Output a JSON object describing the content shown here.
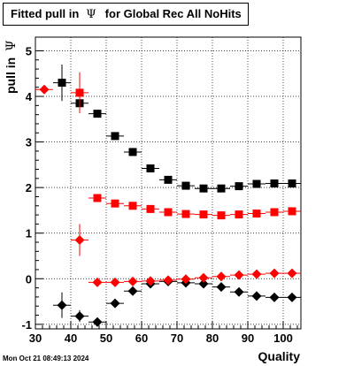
{
  "title": {
    "text": "Fitted pull in",
    "symbol": "Ψ",
    "suffix": "for Global Rec All NoHits"
  },
  "axes": {
    "ylabel": "pull in",
    "ylabel_symbol": "Ψ",
    "xlabel": "Quality"
  },
  "timestamp": "Mon Oct 21 08:49:13 2024",
  "colors": {
    "black": "#000000",
    "red": "#ff0000"
  },
  "chart_data": {
    "type": "scatter",
    "xlim": [
      30,
      105
    ],
    "ylim": [
      -1.1,
      5.3
    ],
    "xticks": [
      30,
      40,
      50,
      60,
      70,
      80,
      90,
      100
    ],
    "yticks": [
      -1,
      0,
      1,
      2,
      3,
      4,
      5
    ],
    "grid": true,
    "x_halfwidth": 2.5,
    "series": [
      {
        "marker": "square",
        "color": "#000000",
        "x": [
          37.5,
          42.5,
          47.5,
          52.5,
          57.5,
          62.5,
          67.5,
          72.5,
          77.5,
          82.5,
          87.5,
          92.5,
          97.5,
          102.5
        ],
        "y": [
          4.3,
          3.85,
          3.62,
          3.13,
          2.78,
          2.42,
          2.17,
          2.04,
          1.98,
          1.98,
          2.03,
          2.08,
          2.09,
          2.09
        ],
        "yerr": [
          0.4,
          0.1,
          0.06,
          0.05,
          0.04,
          0.03,
          0.03,
          0.03,
          0.02,
          0.02,
          0.02,
          0.02,
          0.02,
          0.02
        ]
      },
      {
        "marker": "square",
        "color": "#ff0000",
        "x": [
          42.5,
          47.5,
          52.5,
          57.5,
          62.5,
          67.5,
          72.5,
          77.5,
          82.5,
          87.5,
          92.5,
          97.5,
          102.5
        ],
        "y": [
          4.08,
          1.77,
          1.65,
          1.6,
          1.53,
          1.46,
          1.42,
          1.41,
          1.39,
          1.41,
          1.43,
          1.46,
          1.48
        ],
        "yerr": [
          0.45,
          0.06,
          0.05,
          0.04,
          0.04,
          0.03,
          0.03,
          0.03,
          0.03,
          0.03,
          0.03,
          0.03,
          0.03
        ]
      },
      {
        "marker": "diamond",
        "color": "#000000",
        "x": [
          37.5,
          42.5,
          47.5,
          52.5,
          57.5,
          62.5,
          67.5,
          72.5,
          77.5,
          82.5,
          87.5,
          92.5,
          97.5,
          102.5
        ],
        "y": [
          -0.58,
          -0.82,
          -0.95,
          -0.54,
          -0.27,
          -0.11,
          -0.06,
          -0.09,
          -0.11,
          -0.18,
          -0.29,
          -0.38,
          -0.41,
          -0.41
        ],
        "yerr": [
          0.28,
          0.13,
          0.06,
          0.05,
          0.04,
          0.03,
          0.03,
          0.03,
          0.02,
          0.02,
          0.02,
          0.02,
          0.02,
          0.02
        ]
      },
      {
        "marker": "diamond",
        "color": "#ff0000",
        "x": [
          32.5,
          42.5,
          47.5,
          52.5,
          57.5,
          62.5,
          67.5,
          72.5,
          77.5,
          82.5,
          87.5,
          92.5,
          97.5,
          102.5
        ],
        "y": [
          4.15,
          0.85,
          -0.08,
          -0.08,
          -0.06,
          -0.05,
          -0.03,
          -0.01,
          0.02,
          0.05,
          0.08,
          0.1,
          0.12,
          0.12
        ],
        "yerr": [
          0.0,
          0.35,
          0.05,
          0.04,
          0.04,
          0.03,
          0.03,
          0.03,
          0.03,
          0.02,
          0.02,
          0.02,
          0.02,
          0.02
        ]
      }
    ]
  }
}
